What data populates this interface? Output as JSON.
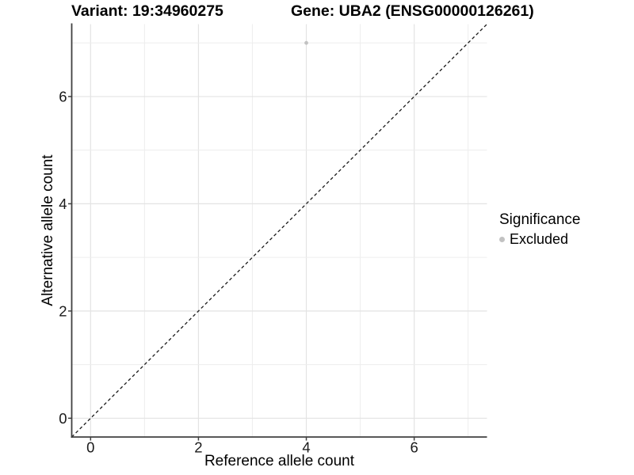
{
  "chart_data": {
    "type": "scatter",
    "title_left": "Variant: 19:34960275",
    "title_right": "Gene: UBA2 (ENSG00000126261)",
    "xlabel": "Reference allele count",
    "ylabel": "Alternative allele count",
    "xlim": [
      -0.35,
      7.35
    ],
    "ylim": [
      -0.35,
      7.35
    ],
    "x_ticks": [
      0,
      2,
      4,
      6
    ],
    "y_ticks": [
      0,
      2,
      4,
      6
    ],
    "x_tick_labels": [
      "0",
      "2",
      "4",
      "6"
    ],
    "y_tick_labels": [
      "0",
      "2",
      "4",
      "6"
    ],
    "gridlines_x": [
      0,
      1,
      2,
      3,
      4,
      5,
      6,
      7
    ],
    "gridlines_y": [
      0,
      1,
      2,
      3,
      4,
      5,
      6,
      7
    ],
    "grid": "on",
    "points": [
      {
        "x": 4,
        "y": 7,
        "series": "Excluded"
      }
    ],
    "series": [
      {
        "name": "Excluded",
        "color": "#c2c2c2"
      }
    ],
    "reference_line": {
      "style": "dashed",
      "from": [
        -0.35,
        -0.35
      ],
      "to": [
        7.35,
        7.35
      ],
      "color": "#1a1a1a"
    },
    "legend": {
      "title": "Significance",
      "position": "right",
      "items": [
        {
          "label": "Excluded",
          "color": "#c2c2c2"
        }
      ]
    },
    "style": {
      "grid_major_color": "#e3e3e3",
      "grid_minor_color": "#ededed",
      "axis_line_color": "#404040",
      "tick_color": "#404040",
      "tick_label_color": "#1a1a1a",
      "dashed_line_color": "#1a1a1a",
      "background": "#ffffff"
    }
  }
}
